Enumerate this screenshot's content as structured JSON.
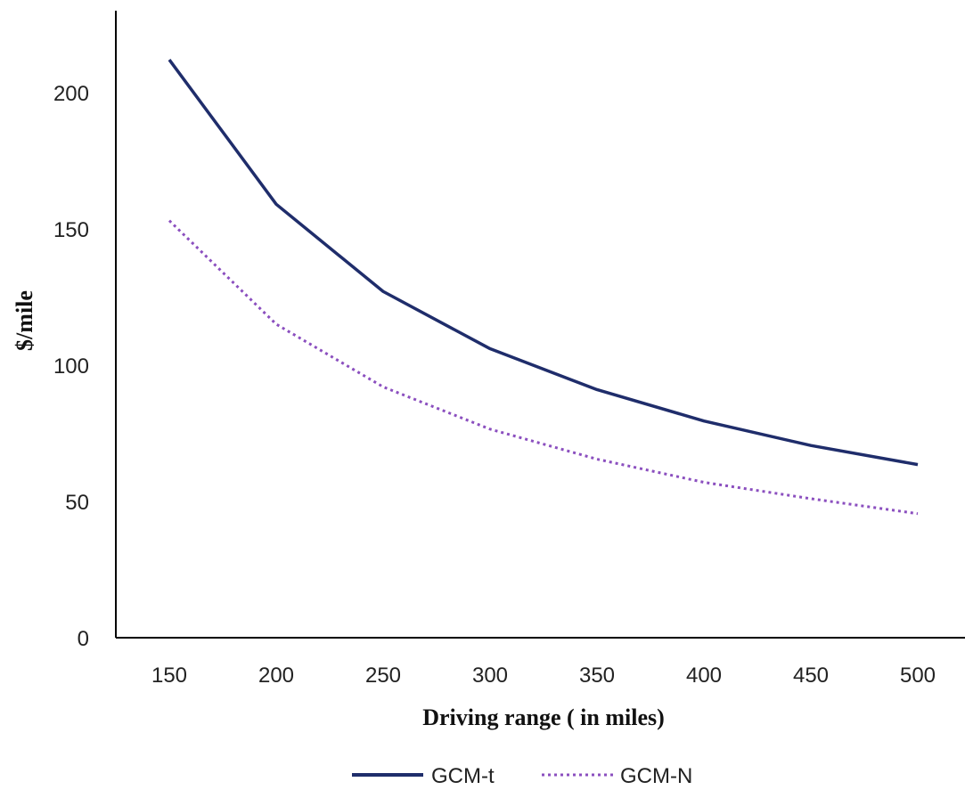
{
  "chart_data": {
    "type": "line",
    "title": "",
    "xlabel": "Driving range ( in miles)",
    "ylabel": "$/mile",
    "x": [
      150,
      200,
      250,
      300,
      350,
      400,
      450,
      500
    ],
    "ylim": [
      0,
      200
    ],
    "yticks": [
      0,
      50,
      100,
      150,
      200
    ],
    "grid": false,
    "legend_position": "bottom",
    "series": [
      {
        "name": "GCM-t",
        "style": "solid",
        "color": "#1f2d6b",
        "values": [
          212,
          159,
          127,
          106,
          91,
          79.5,
          70.5,
          63.5
        ]
      },
      {
        "name": "GCM-N",
        "style": "dotted",
        "color": "#8b4fbf",
        "values": [
          153,
          115,
          92,
          76.5,
          65.5,
          57,
          51,
          45.5
        ]
      }
    ]
  }
}
